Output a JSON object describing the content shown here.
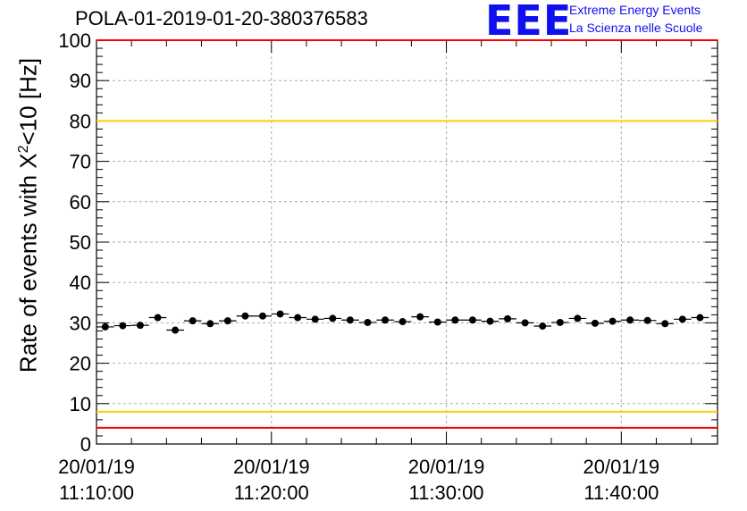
{
  "header": {
    "title": "POLA-01-2019-01-20-380376583",
    "logo_text": "EEE",
    "logo_line1": "Extreme Energy Events",
    "logo_line2": "La Scienza nelle Scuole"
  },
  "y_axis": {
    "label_prefix": "Rate of events with X",
    "label_sup": "2",
    "label_suffix": "<10 [Hz]"
  },
  "chart_data": {
    "type": "scatter",
    "title": "POLA-01-2019-01-20-380376583",
    "xlabel": "",
    "ylabel": "Rate of events with X^2<10 [Hz]",
    "ylim": [
      0,
      100
    ],
    "xlim": [
      "20/01/19 11:10:00",
      "20/01/19 11:45:30"
    ],
    "grid": true,
    "x_tick_labels": [
      [
        "20/01/19",
        "11:10:00"
      ],
      [
        "20/01/19",
        "11:20:00"
      ],
      [
        "20/01/19",
        "11:30:00"
      ],
      [
        "20/01/19",
        "11:40:00"
      ]
    ],
    "y_ticks": [
      0,
      10,
      20,
      30,
      40,
      50,
      60,
      70,
      80,
      90,
      100
    ],
    "bin_width_s": 60,
    "series": [
      {
        "x": [
          "11:10:30",
          "11:11:30",
          "11:12:30",
          "11:13:30",
          "11:14:30",
          "11:15:30",
          "11:16:30",
          "11:17:30",
          "11:18:30",
          "11:19:30",
          "11:20:30",
          "11:21:30",
          "11:22:30",
          "11:23:30",
          "11:24:30",
          "11:25:30",
          "11:26:30",
          "11:27:30",
          "11:28:30",
          "11:29:30",
          "11:30:30",
          "11:31:30",
          "11:32:30",
          "11:33:30",
          "11:34:30",
          "11:35:30",
          "11:36:30",
          "11:37:30",
          "11:38:30",
          "11:39:30",
          "11:40:30",
          "11:41:30",
          "11:42:30",
          "11:43:30",
          "11:44:30"
        ],
        "values": [
          29.0,
          29.3,
          29.4,
          31.3,
          28.2,
          30.5,
          29.8,
          30.5,
          31.7,
          31.7,
          32.2,
          31.3,
          30.9,
          31.1,
          30.7,
          30.1,
          30.7,
          30.3,
          31.5,
          30.2,
          30.7,
          30.7,
          30.4,
          31.0,
          30.0,
          29.2,
          30.1,
          31.1,
          29.9,
          30.4,
          30.7,
          30.6,
          29.8,
          30.9,
          31.3
        ]
      }
    ],
    "reference_lines": [
      {
        "value": 100,
        "color": "#ff0000"
      },
      {
        "value": 80,
        "color": "#ffcc00"
      },
      {
        "value": 8,
        "color": "#ffcc00"
      },
      {
        "value": 4,
        "color": "#ff0000"
      }
    ],
    "marker_color": "#000000"
  }
}
